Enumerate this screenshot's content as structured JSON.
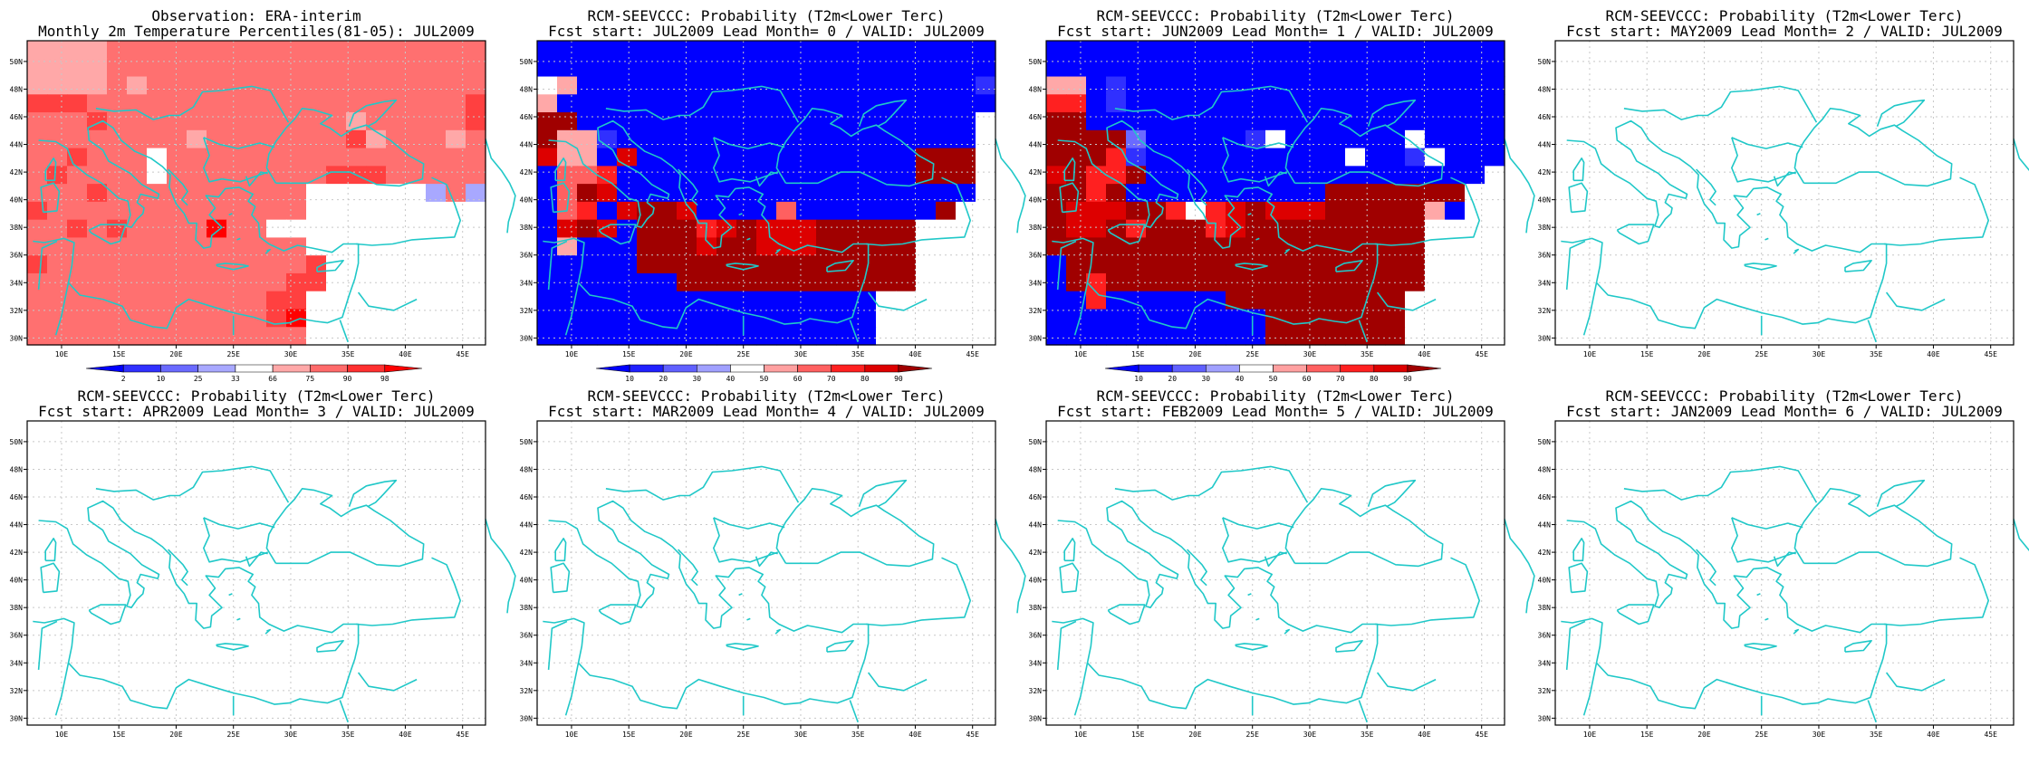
{
  "lon_ticks": [
    "10E",
    "15E",
    "20E",
    "25E",
    "30E",
    "35E",
    "40E",
    "45E"
  ],
  "lat_ticks": [
    "30N",
    "32N",
    "34N",
    "36N",
    "38N",
    "40N",
    "42N",
    "44N",
    "46N",
    "48N",
    "50N"
  ],
  "colors": {
    "coast": "#20c8c8",
    "frame": "#000000",
    "grid": "#c8c8c8"
  },
  "panels": [
    {
      "id": "obs",
      "title1": "Observation: ERA-interim",
      "title2": "Monthly 2m Temperature Percentiles(81-05): JUL2009",
      "has_field": true,
      "colorbar": {
        "labels": [
          "2",
          "10",
          "25",
          "33",
          "66",
          "75",
          "90",
          "98"
        ],
        "colors": [
          "#0000ff",
          "#3030ff",
          "#6a6aff",
          "#a8a8ff",
          "#ffffff",
          "#ffa8a8",
          "#ff6a6a",
          "#ff3030",
          "#ff0000"
        ]
      },
      "field": {
        "palette": [
          "#0000ff",
          "#3030ff",
          "#6a6aff",
          "#a8a8ff",
          "#ffffff",
          "#ffa8a8",
          "#ff7070",
          "#ff4040",
          "#ff0000"
        ],
        "rows": [
          "55556666666666666666666",
          "55556666666666666666666",
          "55556566666666666666666",
          "77766666666666666666667",
          "66676666666666665666667",
          "66666666566666667566656",
          "66766646666666666666666",
          "67666646666666677766666",
          "66676666666666444444363",
          "76666666666666444444444",
          "66767666686644444444444",
          "66666666666666444444444",
          "76666666666666744444444",
          "66666666666667744444444",
          "66666666666677444444444",
          "66666666666678444444444",
          "66666666666666444444444"
        ]
      }
    },
    {
      "id": "lead0",
      "title1": "RCM-SEEVCCC: Probability (T2m<Lower Terc)",
      "title2": "Fcst start: JUL2009  Lead Month= 0 / VALID: JUL2009",
      "has_field": true,
      "colorbar": {
        "labels": [
          "10",
          "20",
          "30",
          "40",
          "50",
          "60",
          "70",
          "80",
          "90"
        ],
        "colors": [
          "#0000ff",
          "#2020ff",
          "#6060ff",
          "#a0a0ff",
          "#ffffff",
          "#ffa0a0",
          "#ff6060",
          "#ff2020",
          "#dd0000",
          "#a00000"
        ]
      },
      "field": {
        "palette": [
          "#0000ff",
          "#3030ff",
          "#6a6aff",
          "#a8a8ff",
          "#ffffff",
          "#ffa8a8",
          "#ff6060",
          "#ff2020",
          "#dd0000",
          "#a00000"
        ],
        "rows": [
          "00000000000000000000000",
          "00000000000000000000000",
          "45000000000000000000001",
          "50000000000000000000000",
          "99000000000000000000004",
          "95510000000000000000004",
          "85508000000000000009994",
          "06670000000000000009994",
          "06980000000000000000004",
          "06708998000060000000944",
          "08980999789888999994444",
          "05000999899888999994444",
          "00000999999999999994444",
          "00000009999999999994444",
          "00000000000000000444444",
          "00000000000000000444444",
          "00000000000000000444444"
        ]
      }
    },
    {
      "id": "lead1",
      "title1": "RCM-SEEVCCC: Probability (T2m<Lower Terc)",
      "title2": "Fcst start: JUN2009  Lead Month= 1 / VALID: JUL2009",
      "has_field": true,
      "colorbar": {
        "labels": [
          "10",
          "20",
          "30",
          "40",
          "50",
          "60",
          "70",
          "80",
          "90"
        ],
        "colors": [
          "#0000ff",
          "#2020ff",
          "#6060ff",
          "#a0a0ff",
          "#ffffff",
          "#ffa0a0",
          "#ff6060",
          "#ff2020",
          "#dd0000",
          "#a00000"
        ]
      },
      "field": {
        "palette": [
          "#0000ff",
          "#3030ff",
          "#6a6aff",
          "#a8a8ff",
          "#ffffff",
          "#ffa8a8",
          "#ff6060",
          "#ff2020",
          "#dd0000",
          "#a00000"
        ],
        "rows": [
          "00000000000000000000000",
          "00000000000000000000000",
          "55010000000000000000000",
          "77010000000000000000000",
          "99000000000000000000000",
          "99992000001400000040000",
          "99971000000000040014000",
          "89779000000000000000004",
          "99790000000000999999944",
          "98889974789888999995044",
          "98897999789999999994444",
          "99999999999999999994444",
          "09999999999999999994444",
          "09799999999999999994444",
          "00700000099999999944444",
          "00000000000999999944444",
          "00000000000999999944444"
        ]
      }
    },
    {
      "id": "lead2",
      "title1": "RCM-SEEVCCC: Probability (T2m<Lower Terc)",
      "title2": "Fcst start: MAY2009  Lead Month= 2 / VALID: JUL2009",
      "has_field": false
    },
    {
      "id": "lead3",
      "title1": "RCM-SEEVCCC: Probability (T2m<Lower Terc)",
      "title2": "Fcst start: APR2009  Lead Month= 3 / VALID: JUL2009",
      "has_field": false
    },
    {
      "id": "lead4",
      "title1": "RCM-SEEVCCC: Probability (T2m<Lower Terc)",
      "title2": "Fcst start: MAR2009  Lead Month= 4 / VALID: JUL2009",
      "has_field": false
    },
    {
      "id": "lead5",
      "title1": "RCM-SEEVCCC: Probability (T2m<Lower Terc)",
      "title2": "Fcst start: FEB2009  Lead Month= 5 / VALID: JUL2009",
      "has_field": false
    },
    {
      "id": "lead6",
      "title1": "RCM-SEEVCCC: Probability (T2m<Lower Terc)",
      "title2": "Fcst start: JAN2009  Lead Month= 6 / VALID: JUL2009",
      "has_field": false
    }
  ]
}
